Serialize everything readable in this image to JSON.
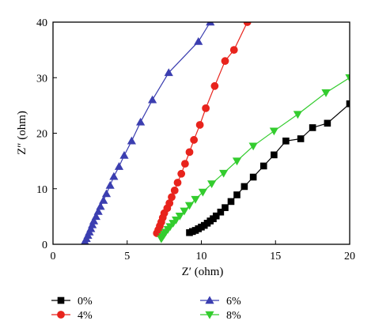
{
  "chart_data": {
    "type": "scatter",
    "title": "",
    "xlabel": "Z′ (ohm)",
    "ylabel": "Z″ (ohm)",
    "xlim": [
      0,
      20
    ],
    "ylim": [
      0,
      40
    ],
    "xticks": [
      0,
      5,
      10,
      15,
      20
    ],
    "yticks": [
      0,
      10,
      20,
      30,
      40
    ],
    "grid": false,
    "legend_position": "bottom",
    "series": [
      {
        "name": "0%",
        "color": "#000000",
        "marker": "square",
        "points": [
          [
            9.2,
            2.1
          ],
          [
            9.4,
            2.3
          ],
          [
            9.6,
            2.5
          ],
          [
            9.8,
            2.8
          ],
          [
            10.0,
            3.1
          ],
          [
            10.2,
            3.4
          ],
          [
            10.4,
            3.8
          ],
          [
            10.6,
            4.2
          ],
          [
            10.8,
            4.6
          ],
          [
            11.0,
            5.1
          ],
          [
            11.3,
            5.8
          ],
          [
            11.6,
            6.6
          ],
          [
            12.0,
            7.7
          ],
          [
            12.4,
            8.9
          ],
          [
            12.9,
            10.4
          ],
          [
            13.5,
            12.1
          ],
          [
            14.2,
            14.1
          ],
          [
            14.9,
            16.1
          ],
          [
            15.7,
            18.6
          ],
          [
            16.7,
            19.0
          ],
          [
            17.5,
            21.0
          ],
          [
            18.5,
            21.8
          ],
          [
            20.0,
            25.3
          ]
        ]
      },
      {
        "name": "4%",
        "color": "#e8231c",
        "marker": "circle",
        "points": [
          [
            7.0,
            2.0
          ],
          [
            7.1,
            2.6
          ],
          [
            7.2,
            3.3
          ],
          [
            7.3,
            4.0
          ],
          [
            7.4,
            4.8
          ],
          [
            7.5,
            5.6
          ],
          [
            7.7,
            6.5
          ],
          [
            7.85,
            7.4
          ],
          [
            8.0,
            8.5
          ],
          [
            8.2,
            9.7
          ],
          [
            8.4,
            11.1
          ],
          [
            8.65,
            12.7
          ],
          [
            8.9,
            14.5
          ],
          [
            9.2,
            16.6
          ],
          [
            9.5,
            18.8
          ],
          [
            9.9,
            21.5
          ],
          [
            10.3,
            24.5
          ],
          [
            10.9,
            28.5
          ],
          [
            11.6,
            33.0
          ],
          [
            12.2,
            35.0
          ],
          [
            13.1,
            40.0
          ]
        ]
      },
      {
        "name": "6%",
        "color": "#3b3eb0",
        "marker": "triangle-up",
        "points": [
          [
            2.15,
            0.5
          ],
          [
            2.25,
            1.0
          ],
          [
            2.35,
            1.6
          ],
          [
            2.45,
            2.2
          ],
          [
            2.55,
            2.8
          ],
          [
            2.65,
            3.5
          ],
          [
            2.75,
            4.2
          ],
          [
            2.9,
            5.0
          ],
          [
            3.05,
            5.9
          ],
          [
            3.2,
            6.8
          ],
          [
            3.4,
            7.9
          ],
          [
            3.6,
            9.1
          ],
          [
            3.85,
            10.6
          ],
          [
            4.1,
            12.2
          ],
          [
            4.45,
            14.0
          ],
          [
            4.8,
            16.0
          ],
          [
            5.3,
            18.6
          ],
          [
            5.9,
            22.0
          ],
          [
            6.7,
            26.0
          ],
          [
            7.8,
            30.9
          ],
          [
            9.8,
            36.5
          ],
          [
            10.6,
            40.0
          ]
        ]
      },
      {
        "name": "8%",
        "color": "#33cc2e",
        "marker": "triangle-down",
        "points": [
          [
            7.3,
            1.0
          ],
          [
            7.4,
            1.4
          ],
          [
            7.5,
            1.8
          ],
          [
            7.6,
            2.2
          ],
          [
            7.75,
            2.7
          ],
          [
            7.9,
            3.2
          ],
          [
            8.1,
            3.8
          ],
          [
            8.3,
            4.4
          ],
          [
            8.55,
            5.1
          ],
          [
            8.85,
            6.0
          ],
          [
            9.2,
            7.0
          ],
          [
            9.6,
            8.1
          ],
          [
            10.1,
            9.4
          ],
          [
            10.7,
            10.9
          ],
          [
            11.5,
            12.8
          ],
          [
            12.4,
            15.0
          ],
          [
            13.5,
            17.7
          ],
          [
            14.9,
            20.4
          ],
          [
            16.5,
            23.4
          ],
          [
            18.4,
            27.3
          ],
          [
            20.0,
            30.0
          ]
        ]
      }
    ]
  }
}
